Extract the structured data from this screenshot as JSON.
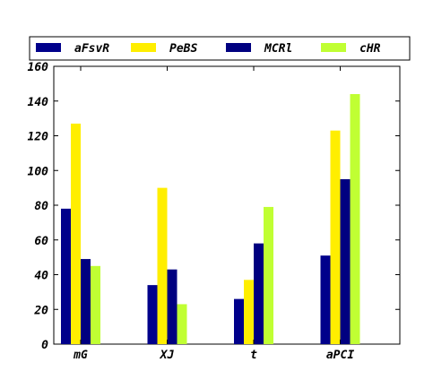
{
  "chart_data": {
    "type": "bar",
    "categories": [
      "mG",
      "XJ",
      "t",
      "aPCI"
    ],
    "series": [
      {
        "name": "aFsvR",
        "color": "#00008b",
        "values": [
          78,
          34,
          26,
          51
        ]
      },
      {
        "name": "PeBS",
        "color": "#ffee00",
        "values": [
          127,
          90,
          37,
          123
        ]
      },
      {
        "name": "MCRl",
        "color": "#000080",
        "values": [
          49,
          43,
          58,
          95
        ]
      },
      {
        "name": "cHR",
        "color": "#c0ff33",
        "values": [
          45,
          23,
          79,
          144
        ]
      }
    ],
    "ylim": [
      0,
      160
    ],
    "yticks": [
      0,
      20,
      40,
      60,
      80,
      100,
      120,
      140,
      160
    ],
    "legend_position": "top",
    "grid": false
  }
}
